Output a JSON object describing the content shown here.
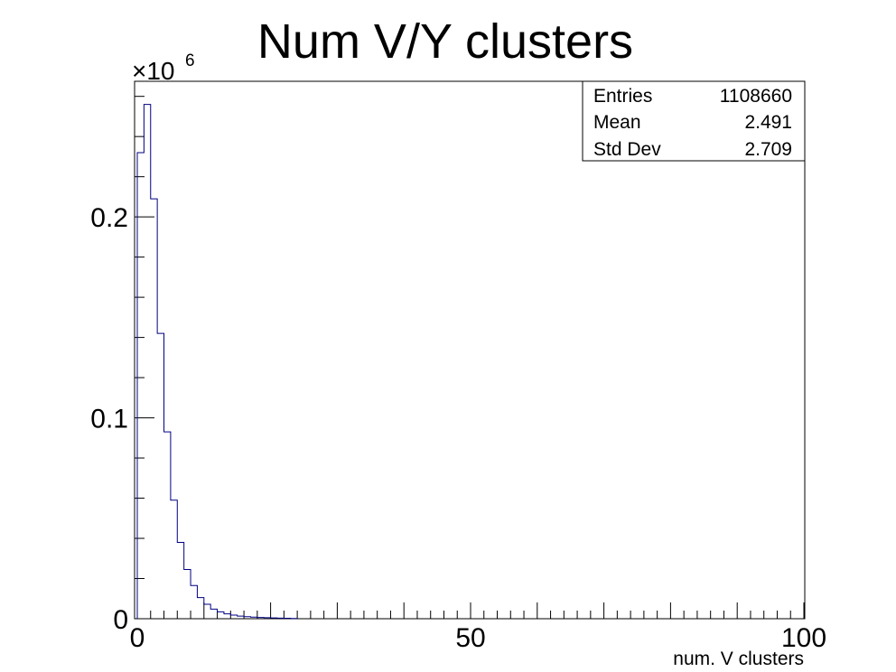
{
  "chart_data": {
    "type": "bar",
    "title": "Num V/Y clusters",
    "xlabel": "num. V clusters",
    "ylabel": "",
    "xlim": [
      0,
      100
    ],
    "ylim": [
      0,
      0.2675
    ],
    "y_multiplier": {
      "base": "×10",
      "exponent": "6"
    },
    "x_ticks": [
      {
        "value": 0,
        "label": "0"
      },
      {
        "value": 50,
        "label": "50"
      },
      {
        "value": 100,
        "label": "100"
      }
    ],
    "y_ticks": [
      {
        "value": 0,
        "label": "0"
      },
      {
        "value": 0.1,
        "label": "0.1"
      },
      {
        "value": 0.2,
        "label": "0.2"
      }
    ],
    "bin_width": 1,
    "x": [
      0,
      1,
      2,
      3,
      4,
      5,
      6,
      7,
      8,
      9,
      10,
      11,
      12,
      13,
      14,
      15,
      16,
      17,
      18,
      19,
      20,
      21,
      22,
      23
    ],
    "values": [
      0.232,
      0.256,
      0.209,
      0.142,
      0.093,
      0.059,
      0.038,
      0.0245,
      0.0165,
      0.0105,
      0.0072,
      0.0048,
      0.0034,
      0.0024,
      0.0018,
      0.0013,
      0.001,
      0.0008,
      0.0006,
      0.0005,
      0.0004,
      0.0003,
      0.0002,
      0.0001
    ],
    "grid": false,
    "legend": "none",
    "line_color": "#000080",
    "stats_box": {
      "position": "top-right",
      "rows": [
        {
          "label": "Entries",
          "value": "1108660"
        },
        {
          "label": "Mean",
          "value": "2.491"
        },
        {
          "label": "Std Dev",
          "value": "2.709"
        }
      ]
    }
  }
}
